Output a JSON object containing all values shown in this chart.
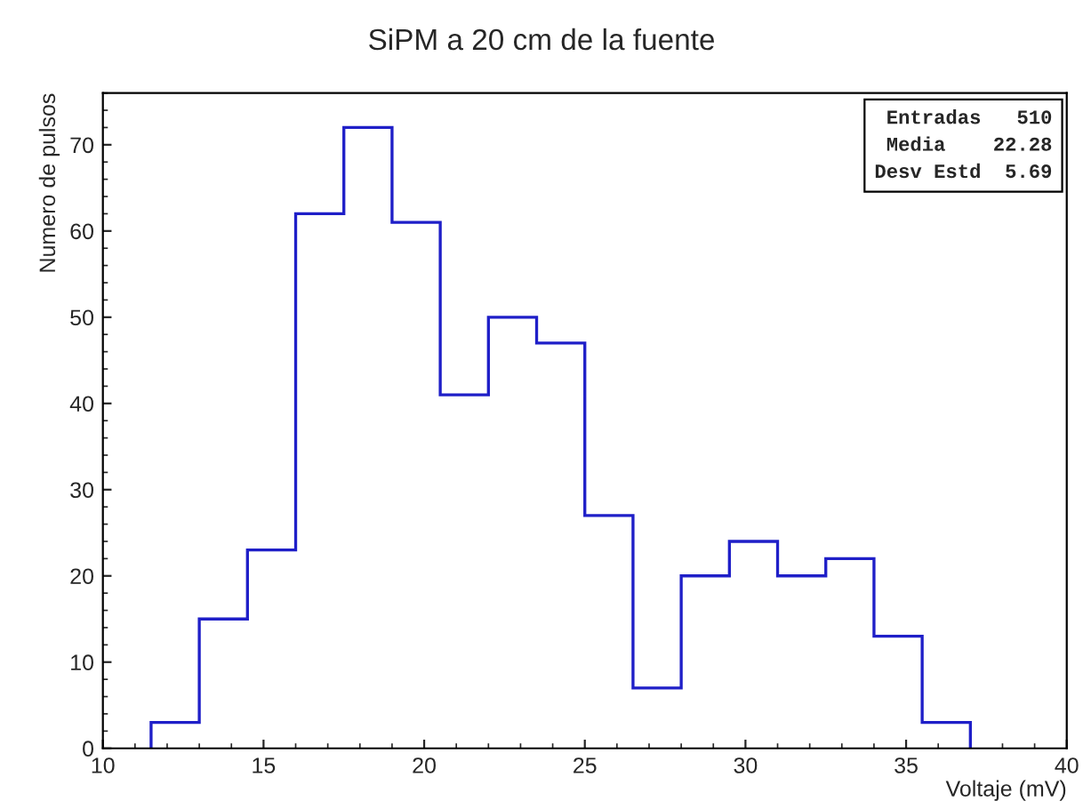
{
  "chart_data": {
    "type": "histogram",
    "title": "SiPM a 20 cm de la fuente",
    "xlabel": "Voltaje (mV)",
    "ylabel": "Numero de pulsos",
    "bins": [
      11.5,
      13.0,
      14.5,
      16.0,
      17.5,
      19.0,
      20.5,
      22.0,
      23.5,
      25.0,
      26.5,
      28.0,
      29.5,
      31.0,
      32.5,
      34.0,
      35.5,
      37.0
    ],
    "values": [
      3,
      15,
      23,
      62,
      72,
      61,
      41,
      50,
      47,
      27,
      7,
      20,
      24,
      20,
      22,
      13,
      3
    ],
    "color": "#1f1fc8",
    "xlim": [
      10,
      40
    ],
    "xticks": [
      10,
      15,
      20,
      25,
      30,
      35,
      40
    ],
    "ylim": [
      0,
      76
    ],
    "yticks": [
      0,
      10,
      20,
      30,
      40,
      50,
      60,
      70
    ],
    "grid": false,
    "annotations": [
      "Entradas   510",
      "Media    22.28",
      "Desv Estd  5.69"
    ]
  }
}
